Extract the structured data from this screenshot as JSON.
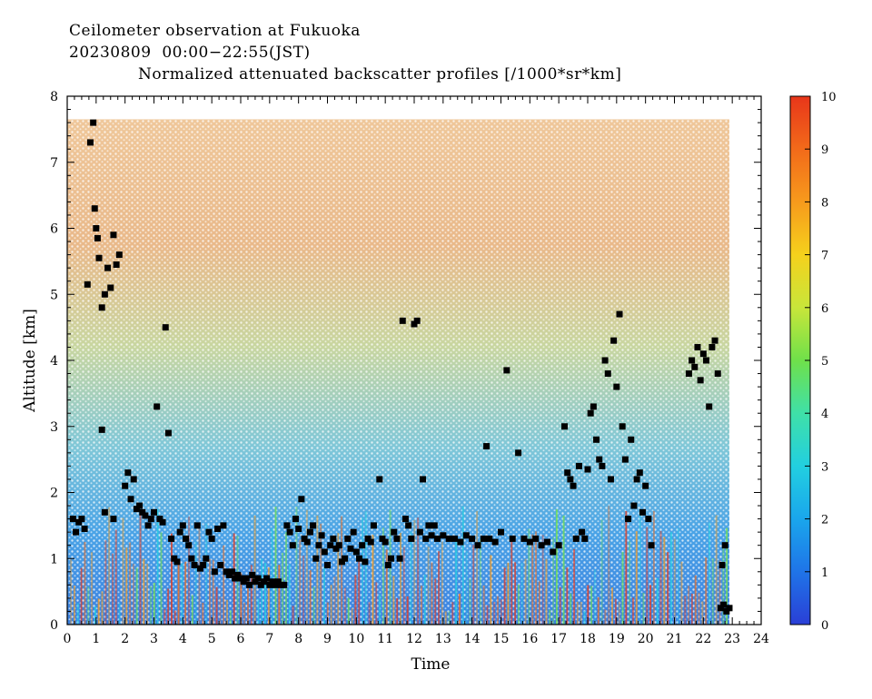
{
  "header": {
    "title": "Ceilometer observation at Fukuoka",
    "subtitle": "20230809  00:00−22:55(JST)",
    "plot_title": "Normalized attenuated backscatter profiles [/1000*sr*km]"
  },
  "chart_data": {
    "type": "heatmap",
    "title": "Normalized attenuated backscatter profiles [/1000*sr*km]",
    "xlabel": "Time",
    "ylabel": "Altitude [km]",
    "xlim": [
      0,
      24
    ],
    "ylim": [
      0,
      8
    ],
    "data_x_range": [
      0,
      22.9
    ],
    "data_y_range": [
      0,
      7.65
    ],
    "x_ticks": [
      "0",
      "1",
      "2",
      "3",
      "4",
      "5",
      "6",
      "7",
      "8",
      "9",
      "10",
      "11",
      "12",
      "13",
      "14",
      "15",
      "16",
      "17",
      "18",
      "19",
      "20",
      "21",
      "22",
      "23",
      "24"
    ],
    "y_ticks": [
      "0",
      "1",
      "2",
      "3",
      "4",
      "5",
      "6",
      "7",
      "8"
    ],
    "colorbar": {
      "range": [
        0,
        10
      ],
      "ticks": [
        "0",
        "1",
        "2",
        "3",
        "4",
        "5",
        "6",
        "7",
        "8",
        "9",
        "10"
      ],
      "colormap": [
        "#2a3fd6",
        "#1f74e8",
        "#1aa6ec",
        "#22cfe0",
        "#3fe0a8",
        "#6fe04a",
        "#c8e63a",
        "#f5d11c",
        "#f79a1c",
        "#f26a1a",
        "#e8361a"
      ]
    },
    "marker_color": "#000000",
    "cloud_base_points": [
      [
        0.2,
        1.6
      ],
      [
        0.3,
        1.4
      ],
      [
        0.4,
        1.55
      ],
      [
        0.5,
        1.6
      ],
      [
        0.6,
        1.45
      ],
      [
        0.7,
        5.15
      ],
      [
        0.8,
        7.3
      ],
      [
        0.9,
        7.6
      ],
      [
        0.95,
        6.3
      ],
      [
        1.0,
        6.0
      ],
      [
        1.05,
        5.85
      ],
      [
        1.1,
        5.55
      ],
      [
        1.2,
        4.8
      ],
      [
        1.3,
        5.0
      ],
      [
        1.4,
        5.4
      ],
      [
        1.5,
        5.1
      ],
      [
        1.6,
        5.9
      ],
      [
        1.7,
        5.45
      ],
      [
        1.8,
        5.6
      ],
      [
        1.2,
        2.95
      ],
      [
        1.3,
        1.7
      ],
      [
        1.6,
        1.6
      ],
      [
        2.0,
        2.1
      ],
      [
        2.1,
        2.3
      ],
      [
        2.2,
        1.9
      ],
      [
        2.3,
        2.2
      ],
      [
        2.4,
        1.75
      ],
      [
        2.5,
        1.8
      ],
      [
        2.6,
        1.7
      ],
      [
        2.7,
        1.65
      ],
      [
        2.8,
        1.5
      ],
      [
        2.9,
        1.6
      ],
      [
        3.0,
        1.7
      ],
      [
        3.1,
        3.3
      ],
      [
        3.2,
        1.6
      ],
      [
        3.3,
        1.55
      ],
      [
        3.4,
        4.5
      ],
      [
        3.5,
        2.9
      ],
      [
        3.6,
        1.3
      ],
      [
        3.7,
        1.0
      ],
      [
        3.8,
        0.95
      ],
      [
        3.9,
        1.4
      ],
      [
        4.0,
        1.5
      ],
      [
        4.1,
        1.3
      ],
      [
        4.2,
        1.2
      ],
      [
        4.3,
        1.0
      ],
      [
        4.4,
        0.9
      ],
      [
        4.5,
        1.5
      ],
      [
        4.6,
        0.85
      ],
      [
        4.7,
        0.9
      ],
      [
        4.8,
        1.0
      ],
      [
        4.9,
        1.4
      ],
      [
        5.0,
        1.3
      ],
      [
        5.1,
        0.8
      ],
      [
        5.2,
        1.45
      ],
      [
        5.3,
        0.9
      ],
      [
        5.4,
        1.5
      ],
      [
        5.5,
        0.8
      ],
      [
        5.6,
        0.75
      ],
      [
        5.7,
        0.8
      ],
      [
        5.8,
        0.7
      ],
      [
        5.9,
        0.75
      ],
      [
        6.0,
        0.7
      ],
      [
        6.1,
        0.65
      ],
      [
        6.2,
        0.7
      ],
      [
        6.3,
        0.6
      ],
      [
        6.4,
        0.75
      ],
      [
        6.5,
        0.65
      ],
      [
        6.6,
        0.7
      ],
      [
        6.7,
        0.6
      ],
      [
        6.8,
        0.65
      ],
      [
        6.9,
        0.7
      ],
      [
        7.0,
        0.6
      ],
      [
        7.1,
        0.65
      ],
      [
        7.2,
        0.6
      ],
      [
        7.3,
        0.65
      ],
      [
        7.4,
        0.6
      ],
      [
        7.5,
        0.6
      ],
      [
        7.6,
        1.5
      ],
      [
        7.7,
        1.4
      ],
      [
        7.8,
        1.2
      ],
      [
        7.9,
        1.6
      ],
      [
        8.0,
        1.45
      ],
      [
        8.1,
        1.9
      ],
      [
        8.2,
        1.3
      ],
      [
        8.3,
        1.25
      ],
      [
        8.4,
        1.4
      ],
      [
        8.5,
        1.5
      ],
      [
        8.6,
        1.0
      ],
      [
        8.7,
        1.2
      ],
      [
        8.8,
        1.35
      ],
      [
        8.9,
        1.1
      ],
      [
        9.0,
        0.9
      ],
      [
        9.1,
        1.2
      ],
      [
        9.2,
        1.3
      ],
      [
        9.3,
        1.15
      ],
      [
        9.4,
        1.2
      ],
      [
        9.5,
        0.95
      ],
      [
        9.6,
        1.0
      ],
      [
        9.7,
        1.3
      ],
      [
        9.8,
        1.15
      ],
      [
        9.9,
        1.4
      ],
      [
        10.0,
        1.1
      ],
      [
        10.1,
        1.0
      ],
      [
        10.2,
        1.2
      ],
      [
        10.3,
        0.95
      ],
      [
        10.4,
        1.3
      ],
      [
        10.5,
        1.25
      ],
      [
        10.6,
        1.5
      ],
      [
        10.8,
        2.2
      ],
      [
        10.9,
        1.3
      ],
      [
        11.0,
        1.25
      ],
      [
        11.1,
        0.9
      ],
      [
        11.2,
        1.0
      ],
      [
        11.3,
        1.4
      ],
      [
        11.4,
        1.3
      ],
      [
        11.5,
        1.0
      ],
      [
        11.6,
        4.6
      ],
      [
        11.7,
        1.6
      ],
      [
        11.8,
        1.5
      ],
      [
        11.9,
        1.3
      ],
      [
        12.0,
        4.55
      ],
      [
        12.1,
        4.6
      ],
      [
        12.2,
        1.4
      ],
      [
        12.3,
        2.2
      ],
      [
        12.4,
        1.3
      ],
      [
        12.5,
        1.5
      ],
      [
        12.6,
        1.35
      ],
      [
        12.7,
        1.5
      ],
      [
        12.8,
        1.3
      ],
      [
        13.0,
        1.35
      ],
      [
        13.2,
        1.3
      ],
      [
        13.4,
        1.3
      ],
      [
        13.6,
        1.25
      ],
      [
        13.8,
        1.35
      ],
      [
        14.0,
        1.3
      ],
      [
        14.2,
        1.2
      ],
      [
        14.4,
        1.3
      ],
      [
        14.5,
        2.7
      ],
      [
        14.6,
        1.3
      ],
      [
        14.8,
        1.25
      ],
      [
        15.0,
        1.4
      ],
      [
        15.2,
        3.85
      ],
      [
        15.4,
        1.3
      ],
      [
        15.6,
        2.6
      ],
      [
        15.8,
        1.3
      ],
      [
        16.0,
        1.25
      ],
      [
        16.2,
        1.3
      ],
      [
        16.4,
        1.2
      ],
      [
        16.6,
        1.25
      ],
      [
        16.8,
        1.1
      ],
      [
        17.0,
        1.2
      ],
      [
        17.2,
        3.0
      ],
      [
        17.3,
        2.3
      ],
      [
        17.4,
        2.2
      ],
      [
        17.5,
        2.1
      ],
      [
        17.6,
        1.3
      ],
      [
        17.7,
        2.4
      ],
      [
        17.8,
        1.4
      ],
      [
        17.9,
        1.3
      ],
      [
        18.0,
        2.35
      ],
      [
        18.1,
        3.2
      ],
      [
        18.2,
        3.3
      ],
      [
        18.3,
        2.8
      ],
      [
        18.4,
        2.5
      ],
      [
        18.5,
        2.4
      ],
      [
        18.6,
        4.0
      ],
      [
        18.7,
        3.8
      ],
      [
        18.8,
        2.2
      ],
      [
        18.9,
        4.3
      ],
      [
        19.0,
        3.6
      ],
      [
        19.1,
        4.7
      ],
      [
        19.2,
        3.0
      ],
      [
        19.3,
        2.5
      ],
      [
        19.4,
        1.6
      ],
      [
        19.5,
        2.8
      ],
      [
        19.6,
        1.8
      ],
      [
        19.7,
        2.2
      ],
      [
        19.8,
        2.3
      ],
      [
        19.9,
        1.7
      ],
      [
        20.0,
        2.1
      ],
      [
        20.1,
        1.6
      ],
      [
        20.2,
        1.2
      ],
      [
        21.5,
        3.8
      ],
      [
        21.6,
        4.0
      ],
      [
        21.7,
        3.9
      ],
      [
        21.8,
        4.2
      ],
      [
        21.9,
        3.7
      ],
      [
        22.0,
        4.1
      ],
      [
        22.1,
        4.0
      ],
      [
        22.2,
        3.3
      ],
      [
        22.3,
        4.2
      ],
      [
        22.4,
        4.3
      ],
      [
        22.5,
        3.8
      ],
      [
        22.6,
        0.25
      ],
      [
        22.7,
        0.3
      ],
      [
        22.8,
        0.2
      ],
      [
        22.9,
        0.25
      ],
      [
        22.75,
        1.2
      ],
      [
        22.65,
        0.9
      ]
    ]
  }
}
